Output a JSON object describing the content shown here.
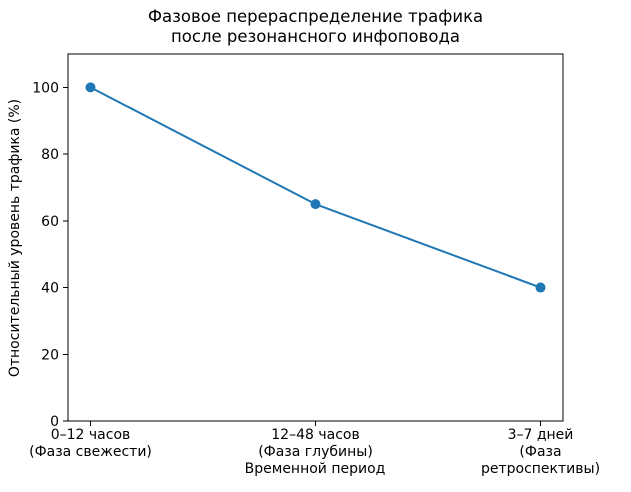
{
  "chart_data": {
    "type": "line",
    "title": "Фазовое перераспределение трафика\nпосле резонансного инфоповода",
    "xlabel": "Временной период",
    "ylabel": "Относительный уровень трафика (%)",
    "categories": [
      "0–12 часов\n(Фаза свежести)",
      "12–48 часов\n(Фаза глубины)",
      "3–7 дней\n(Фаза ретроспективы)"
    ],
    "values": [
      100,
      65,
      40
    ],
    "ylim": [
      0,
      110
    ],
    "yticks": [
      0,
      20,
      40,
      60,
      80,
      100
    ],
    "grid": false,
    "legend": "none",
    "line_color": "#1f77b4",
    "marker": "o",
    "axis_color": "#000000",
    "background": "#ffffff"
  }
}
